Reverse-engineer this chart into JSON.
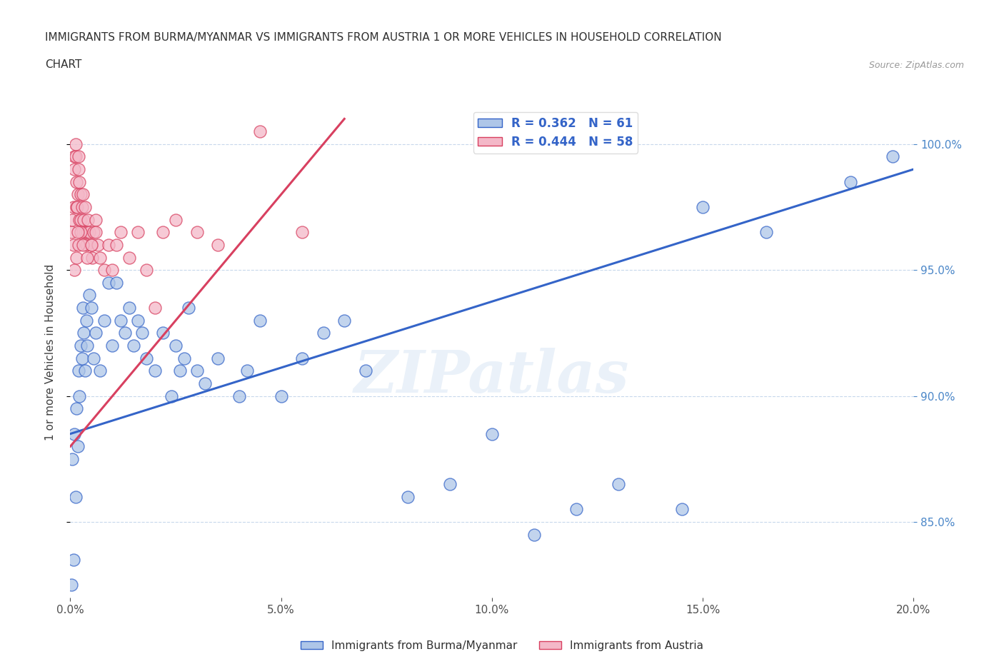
{
  "title_line1": "IMMIGRANTS FROM BURMA/MYANMAR VS IMMIGRANTS FROM AUSTRIA 1 OR MORE VEHICLES IN HOUSEHOLD CORRELATION",
  "title_line2": "CHART",
  "source": "Source: ZipAtlas.com",
  "ylabel": "1 or more Vehicles in Household",
  "xmin": 0.0,
  "xmax": 20.0,
  "ymin": 82.0,
  "ymax": 101.5,
  "yticks": [
    85.0,
    90.0,
    95.0,
    100.0
  ],
  "xticks": [
    0.0,
    5.0,
    10.0,
    15.0,
    20.0
  ],
  "blue_R": 0.362,
  "blue_N": 61,
  "pink_R": 0.444,
  "pink_N": 58,
  "blue_color": "#aec6e8",
  "pink_color": "#f4b8c8",
  "blue_line_color": "#3464c8",
  "pink_line_color": "#d84060",
  "legend_label_blue": "Immigrants from Burma/Myanmar",
  "legend_label_pink": "Immigrants from Austria",
  "background_color": "#ffffff",
  "grid_color": "#c8d8ec",
  "axis_color": "#4a86c8",
  "blue_scatter_x": [
    0.05,
    0.08,
    0.1,
    0.12,
    0.15,
    0.18,
    0.2,
    0.22,
    0.25,
    0.28,
    0.3,
    0.32,
    0.35,
    0.38,
    0.4,
    0.45,
    0.5,
    0.55,
    0.6,
    0.7,
    0.8,
    0.9,
    1.0,
    1.1,
    1.2,
    1.3,
    1.4,
    1.5,
    1.6,
    1.7,
    1.8,
    2.0,
    2.2,
    2.4,
    2.5,
    2.6,
    2.7,
    2.8,
    3.0,
    3.2,
    3.5,
    4.0,
    4.2,
    4.5,
    5.0,
    5.5,
    6.0,
    6.5,
    7.0,
    8.0,
    9.0,
    10.0,
    11.0,
    12.0,
    13.0,
    14.5,
    15.0,
    16.5,
    18.5,
    19.5,
    0.03
  ],
  "blue_scatter_y": [
    87.5,
    83.5,
    88.5,
    86.0,
    89.5,
    88.0,
    91.0,
    90.0,
    92.0,
    91.5,
    93.5,
    92.5,
    91.0,
    93.0,
    92.0,
    94.0,
    93.5,
    91.5,
    92.5,
    91.0,
    93.0,
    94.5,
    92.0,
    94.5,
    93.0,
    92.5,
    93.5,
    92.0,
    93.0,
    92.5,
    91.5,
    91.0,
    92.5,
    90.0,
    92.0,
    91.0,
    91.5,
    93.5,
    91.0,
    90.5,
    91.5,
    90.0,
    91.0,
    93.0,
    90.0,
    91.5,
    92.5,
    93.0,
    91.0,
    86.0,
    86.5,
    88.5,
    84.5,
    85.5,
    86.5,
    85.5,
    97.5,
    96.5,
    98.5,
    99.5,
    82.5
  ],
  "pink_scatter_x": [
    0.03,
    0.05,
    0.07,
    0.08,
    0.1,
    0.1,
    0.12,
    0.13,
    0.15,
    0.15,
    0.17,
    0.18,
    0.2,
    0.2,
    0.22,
    0.22,
    0.25,
    0.25,
    0.28,
    0.3,
    0.3,
    0.32,
    0.35,
    0.35,
    0.38,
    0.4,
    0.42,
    0.45,
    0.5,
    0.52,
    0.55,
    0.6,
    0.65,
    0.7,
    0.8,
    0.9,
    1.0,
    1.1,
    1.2,
    1.4,
    1.6,
    1.8,
    2.0,
    2.2,
    2.5,
    3.0,
    3.5,
    0.15,
    0.2,
    0.25,
    0.3,
    0.4,
    0.5,
    0.6,
    4.5,
    5.5,
    0.1,
    0.18
  ],
  "pink_scatter_y": [
    96.5,
    97.0,
    97.5,
    96.0,
    99.0,
    99.5,
    100.0,
    99.5,
    97.5,
    98.5,
    97.5,
    98.0,
    99.0,
    99.5,
    97.0,
    98.5,
    97.0,
    98.0,
    97.5,
    96.5,
    98.0,
    97.0,
    96.5,
    97.5,
    96.0,
    96.5,
    97.0,
    96.5,
    96.0,
    95.5,
    96.5,
    97.0,
    96.0,
    95.5,
    95.0,
    96.0,
    95.0,
    96.0,
    96.5,
    95.5,
    96.5,
    95.0,
    93.5,
    96.5,
    97.0,
    96.5,
    96.0,
    95.5,
    96.0,
    96.5,
    96.0,
    95.5,
    96.0,
    96.5,
    100.5,
    96.5,
    95.0,
    96.5
  ],
  "blue_trendline_x": [
    0.0,
    20.0
  ],
  "blue_trendline_y": [
    88.5,
    99.0
  ],
  "pink_trendline_x": [
    0.0,
    6.5
  ],
  "pink_trendline_y": [
    88.0,
    101.0
  ]
}
